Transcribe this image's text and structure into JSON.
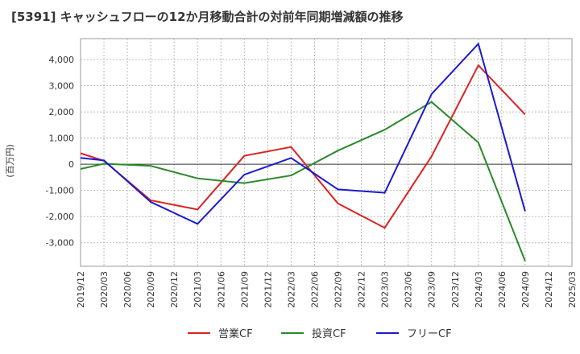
{
  "chart_data": {
    "type": "line",
    "title": "[5391]  キャッシュフローの12か月移動合計の対前年同期増減額の推移",
    "ylabel": "(百万円)",
    "xlabel": "",
    "ylim": [
      -3900,
      4800
    ],
    "yticks": [
      -3000,
      -2000,
      -1000,
      0,
      1000,
      2000,
      3000,
      4000
    ],
    "ytick_labels": [
      "-3,000",
      "-2,000",
      "-1,000",
      "0",
      "1,000",
      "2,000",
      "3,000",
      "4,000"
    ],
    "x": [
      "2019/12",
      "2020/03",
      "2020/06",
      "2020/09",
      "2020/12",
      "2021/03",
      "2021/06",
      "2021/09",
      "2021/12",
      "2022/03",
      "2022/06",
      "2022/09",
      "2022/12",
      "2023/03",
      "2023/06",
      "2023/09",
      "2023/12",
      "2024/03",
      "2024/06",
      "2024/09",
      "2024/12",
      "2025/03"
    ],
    "grid": true,
    "legend_position": "bottom",
    "series": [
      {
        "name": "営業CF",
        "color": "#dd2222",
        "values": [
          420,
          130,
          null,
          -1380,
          null,
          -1730,
          null,
          320,
          null,
          660,
          null,
          -1500,
          null,
          -2430,
          null,
          300,
          null,
          3780,
          null,
          1900,
          null,
          null
        ]
      },
      {
        "name": "投資CF",
        "color": "#2a8a2a",
        "values": [
          -180,
          20,
          null,
          -60,
          null,
          -540,
          null,
          -720,
          null,
          -430,
          null,
          520,
          null,
          1320,
          null,
          2380,
          null,
          830,
          null,
          -3700,
          null,
          null
        ]
      },
      {
        "name": "フリーCF",
        "color": "#1a1ad0",
        "values": [
          240,
          150,
          null,
          -1440,
          null,
          -2280,
          null,
          -400,
          null,
          240,
          null,
          -960,
          null,
          -1090,
          null,
          2680,
          null,
          4600,
          null,
          -1800,
          null,
          null
        ]
      }
    ]
  }
}
